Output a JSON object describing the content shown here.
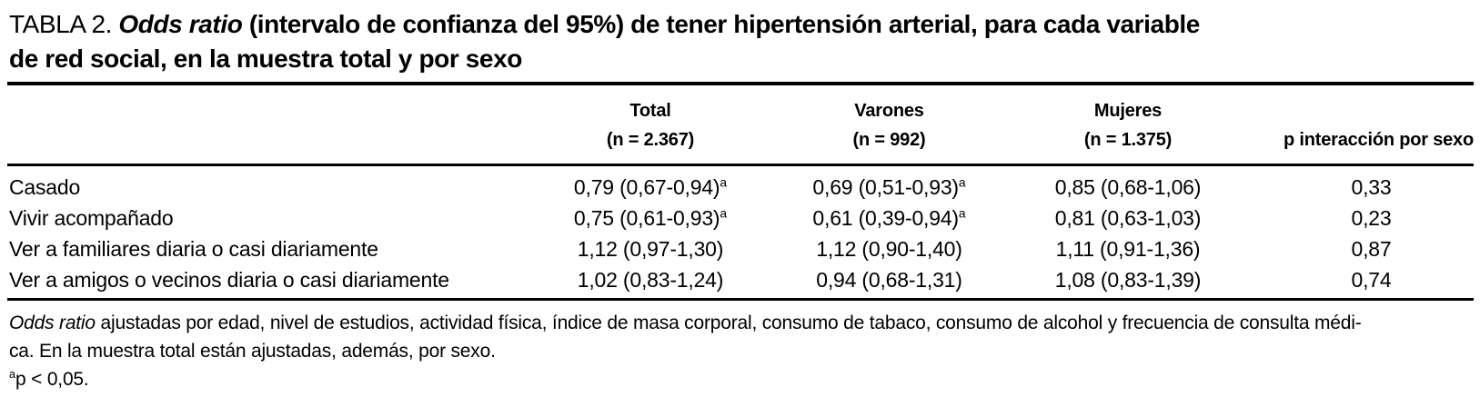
{
  "title": {
    "label": "TABLA 2.",
    "italic": "Odds ratio",
    "line1_rest": "(intervalo de confianza del 95%) de tener hipertensión arterial, para cada variable",
    "line2": "de red social, en la muestra total y por sexo"
  },
  "table": {
    "columns": [
      {
        "label": "Total",
        "sub": "(n = 2.367)"
      },
      {
        "label": "Varones",
        "sub": "(n = 992)"
      },
      {
        "label": "Mujeres",
        "sub": "(n = 1.375)"
      },
      {
        "label": "p interacción por sexo",
        "sub": ""
      }
    ],
    "rows": [
      {
        "label": "Casado",
        "total": {
          "value": "0,79 (0,67-0,94)",
          "sup": "a"
        },
        "varones": {
          "value": "0,69 (0,51-0,93)",
          "sup": "a"
        },
        "mujeres": {
          "value": "0,85 (0,68-1,06)",
          "sup": ""
        },
        "p": "0,33"
      },
      {
        "label": "Vivir acompañado",
        "total": {
          "value": "0,75 (0,61-0,93)",
          "sup": "a"
        },
        "varones": {
          "value": "0,61 (0,39-0,94)",
          "sup": "a"
        },
        "mujeres": {
          "value": "0,81 (0,63-1,03)",
          "sup": ""
        },
        "p": "0,23"
      },
      {
        "label": "Ver a familiares diaria o casi diariamente",
        "total": {
          "value": "1,12 (0,97-1,30)",
          "sup": ""
        },
        "varones": {
          "value": "1,12 (0,90-1,40)",
          "sup": ""
        },
        "mujeres": {
          "value": "1,11 (0,91-1,36)",
          "sup": ""
        },
        "p": "0,87"
      },
      {
        "label": "Ver a amigos o vecinos diaria o casi diariamente",
        "total": {
          "value": "1,02 (0,83-1,24)",
          "sup": ""
        },
        "varones": {
          "value": "0,94 (0,68-1,31)",
          "sup": ""
        },
        "mujeres": {
          "value": "1,08 (0,83-1,39)",
          "sup": ""
        },
        "p": "0,74"
      }
    ]
  },
  "footnote": {
    "line1_italic": "Odds ratio",
    "line1_rest": " ajustadas por edad, nivel de estudios, actividad física, índice de masa corporal, consumo de tabaco, consumo de alcohol y frecuencia de consulta médi-",
    "line2": "ca. En la muestra total están ajustadas, además, por sexo.",
    "line3_sup": "a",
    "line3_rest": "p < 0,05."
  }
}
